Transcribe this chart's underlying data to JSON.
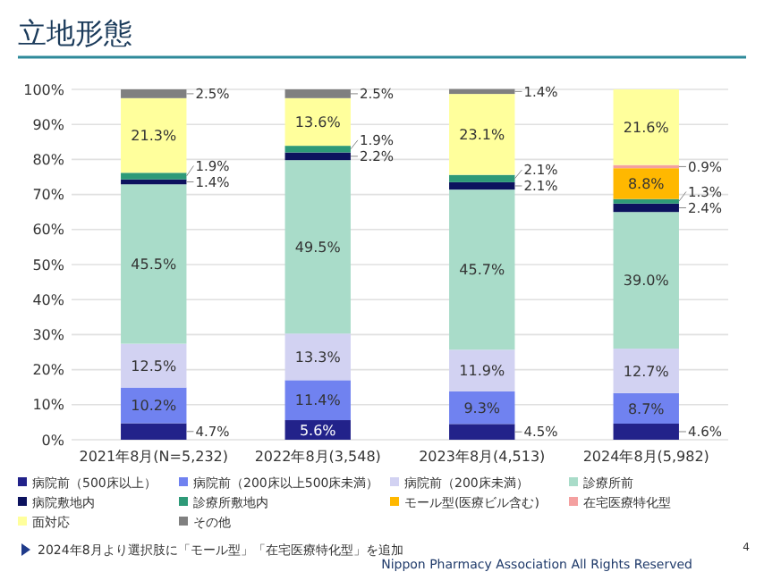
{
  "chart_data": {
    "type": "bar",
    "title": "立地形態",
    "stacked": true,
    "categories": [
      "2021年8月(N=5,232)",
      "2022年8月(3,548)",
      "2023年8月(4,513)",
      "2024年8月(5,982)"
    ],
    "ylim": [
      0,
      100
    ],
    "yticks": [
      {
        "value": 0,
        "label": "0%"
      },
      {
        "value": 10,
        "label": "10%"
      },
      {
        "value": 20,
        "label": "20%"
      },
      {
        "value": 30,
        "label": "30%"
      },
      {
        "value": 40,
        "label": "40%"
      },
      {
        "value": 50,
        "label": "50%"
      },
      {
        "value": 60,
        "label": "60%"
      },
      {
        "value": 70,
        "label": "70%"
      },
      {
        "value": 80,
        "label": "80%"
      },
      {
        "value": 90,
        "label": "90%"
      },
      {
        "value": 100,
        "label": "100%"
      }
    ],
    "grid": "y",
    "legend": "bottom",
    "series": [
      {
        "name": "病院前（500床以上）",
        "color": "#22228a",
        "values": [
          4.7,
          5.6,
          4.5,
          4.6
        ],
        "value_labels": [
          "4.7%",
          "5.6%",
          "4.5%",
          "4.6%"
        ]
      },
      {
        "name": "病院前（200床以上500床未満）",
        "color": "#7082f0",
        "values": [
          10.2,
          11.4,
          9.3,
          8.7
        ],
        "value_labels": [
          "10.2%",
          "11.4%",
          "9.3%",
          "8.7%"
        ]
      },
      {
        "name": "病院前（200床未満）",
        "color": "#d2d2f2",
        "values": [
          12.5,
          13.3,
          11.9,
          12.7
        ],
        "value_labels": [
          "12.5%",
          "13.3%",
          "11.9%",
          "12.7%"
        ]
      },
      {
        "name": "診療所前",
        "color": "#a9dcc9",
        "values": [
          45.5,
          49.5,
          45.7,
          39.0
        ],
        "value_labels": [
          "45.5%",
          "49.5%",
          "45.7%",
          "39.0%"
        ]
      },
      {
        "name": "病院敷地内",
        "color": "#0c125e",
        "values": [
          1.4,
          2.2,
          2.1,
          2.4
        ],
        "value_labels": [
          "1.4%",
          "2.2%",
          "2.1%",
          "2.4%"
        ]
      },
      {
        "name": "診療所敷地内",
        "color": "#2e9a78",
        "values": [
          1.9,
          1.9,
          2.1,
          1.3
        ],
        "value_labels": [
          "1.9%",
          "1.9%",
          "2.1%",
          "1.3%"
        ]
      },
      {
        "name": "モール型(医療ビル含む)",
        "color": "#ffb800",
        "values": [
          null,
          null,
          null,
          8.8
        ],
        "value_labels": [
          null,
          null,
          null,
          "8.8%"
        ]
      },
      {
        "name": "在宅医療特化型",
        "color": "#f4a0a0",
        "values": [
          null,
          null,
          null,
          0.9
        ],
        "value_labels": [
          null,
          null,
          null,
          "0.9%"
        ]
      },
      {
        "name": "面対応",
        "color": "#ffff9c",
        "values": [
          21.3,
          13.6,
          23.1,
          21.6
        ],
        "value_labels": [
          "21.3%",
          "13.6%",
          "23.1%",
          "21.6%"
        ]
      },
      {
        "name": "その他",
        "color": "#808080",
        "values": [
          2.5,
          2.5,
          1.4,
          null
        ],
        "value_labels": [
          "2.5%",
          "2.5%",
          "1.4%",
          null
        ]
      }
    ],
    "annotations": [
      "2024年8月より選択肢に「モール型」「在宅医療特化型」を追加",
      "Nippon Pharmacy Association All Rights Reserved",
      "4"
    ]
  }
}
